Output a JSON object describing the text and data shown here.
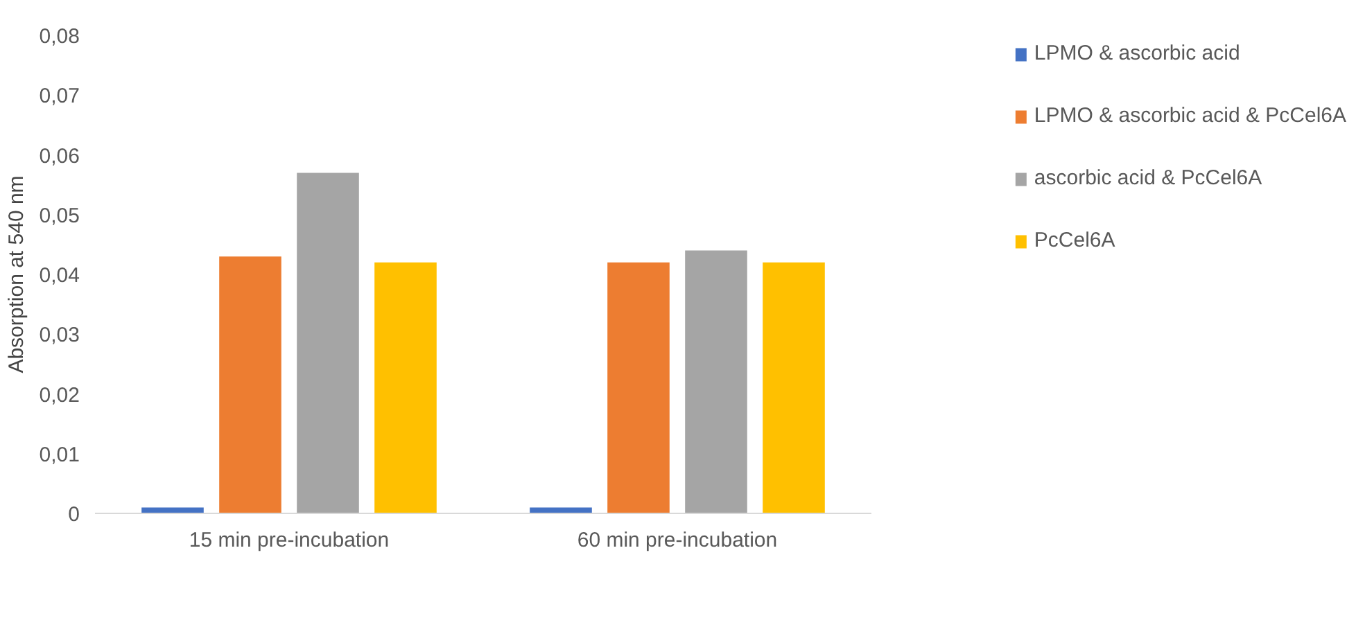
{
  "chart_data": {
    "type": "bar",
    "ylabel": "Absorption at 540 nm",
    "categories": [
      "15 min pre-incubation",
      "60 min pre-incubation"
    ],
    "series": [
      {
        "name": "LPMO & ascorbic acid",
        "color": "#4472c4",
        "values": [
          0.001,
          0.001
        ]
      },
      {
        "name": "LPMO & ascorbic acid & PcCel6A",
        "color": "#ed7d31",
        "values": [
          0.043,
          0.042
        ]
      },
      {
        "name": "ascorbic acid & PcCel6A",
        "color": "#a5a5a5",
        "values": [
          0.057,
          0.044
        ]
      },
      {
        "name": "PcCel6A",
        "color": "#ffc000",
        "values": [
          0.042,
          0.042
        ]
      }
    ],
    "ylim": [
      0,
      0.08
    ],
    "yticks": [
      0,
      {
        "value": 0.01,
        "label": "0,01"
      },
      {
        "value": 0.02,
        "label": "0,02"
      },
      {
        "value": 0.03,
        "label": "0,03"
      },
      {
        "value": 0.04,
        "label": "0,04"
      },
      {
        "value": 0.05,
        "label": "0,05"
      },
      {
        "value": 0.06,
        "label": "0,06"
      },
      {
        "value": 0.07,
        "label": "0,07"
      },
      {
        "value": 0.08,
        "label": "0,08"
      }
    ],
    "grid": false,
    "legend": "right"
  }
}
